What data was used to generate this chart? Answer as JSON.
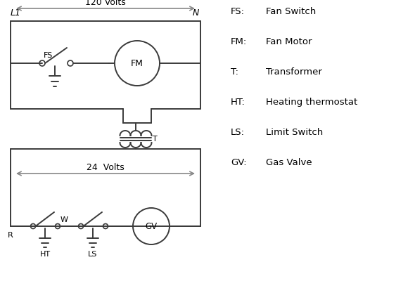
{
  "bg_color": "#ffffff",
  "line_color": "#3a3a3a",
  "text_color": "#000000",
  "arrow_color": "#888888",
  "legend": {
    "FS": "Fan Switch",
    "FM": "Fan Motor",
    "T": "Transformer",
    "HT": "Heating thermostat",
    "LS": "Limit Switch",
    "GV": "Gas Valve"
  }
}
